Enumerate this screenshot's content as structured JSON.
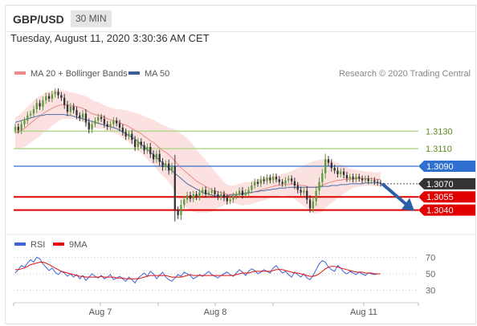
{
  "header": {
    "symbol": "GBP/USD",
    "timeframe": "30 MIN",
    "datetime": "Tuesday, August 11, 2020 3:30:36 AM CET"
  },
  "legend": {
    "bollinger": "MA 20 + Bollinger Bands",
    "ma50": "MA 50",
    "credit": "Research © 2020 Trading Central"
  },
  "colors": {
    "bull": "#5c9a3a",
    "bear": "#333333",
    "band_fill": "#fcdcdc",
    "ma20": "#e88a8a",
    "ma50": "#4a6fa8",
    "level_green": "#b5d68d",
    "level_red": "#e00000",
    "level_blue": "#2f6fd0",
    "current": "#333333",
    "arrow": "#2b5fa6",
    "rsi": "#3f63d6",
    "ma9": "#e01010"
  },
  "chart_data": [
    {
      "type": "candlestick",
      "x_labels": [
        "Aug 7",
        "Aug 8",
        "Aug 11"
      ],
      "ylim": [
        1.3014,
        1.3188
      ],
      "levels": [
        {
          "label": "1.3130",
          "value": 1.313,
          "style": "resistance-green"
        },
        {
          "label": "1.3110",
          "value": 1.311,
          "style": "resistance-green"
        },
        {
          "label": "1.3090",
          "value": 1.309,
          "style": "pivot-blue"
        },
        {
          "label": "1.3070",
          "value": 1.307,
          "style": "current-price"
        },
        {
          "label": "1.3055",
          "value": 1.3055,
          "style": "support-red"
        },
        {
          "label": "1.3040",
          "value": 1.304,
          "style": "support-red"
        }
      ],
      "close": [
        1.3135,
        1.3131,
        1.3138,
        1.3142,
        1.3148,
        1.315,
        1.3155,
        1.3162,
        1.3158,
        1.3165,
        1.317,
        1.3167,
        1.3172,
        1.3175,
        1.3171,
        1.3168,
        1.316,
        1.3152,
        1.3158,
        1.3154,
        1.3148,
        1.3145,
        1.315,
        1.314,
        1.3132,
        1.3138,
        1.3142,
        1.3146,
        1.3144,
        1.3138,
        1.3135,
        1.3138,
        1.3142,
        1.3139,
        1.3134,
        1.3129,
        1.3124,
        1.3127,
        1.312,
        1.3112,
        1.3118,
        1.3114,
        1.3108,
        1.3112,
        1.3104,
        1.3098,
        1.3104,
        1.3095,
        1.3089,
        1.3093,
        1.3085,
        1.309,
        1.304,
        1.3034,
        1.3046,
        1.3052,
        1.3057,
        1.3053,
        1.3058,
        1.3055,
        1.306,
        1.3063,
        1.3058,
        1.306,
        1.3062,
        1.3058,
        1.3055,
        1.3058,
        1.3054,
        1.305,
        1.3052,
        1.3056,
        1.3058,
        1.3062,
        1.3057,
        1.306,
        1.3063,
        1.3068,
        1.3072,
        1.307,
        1.3075,
        1.3073,
        1.3077,
        1.3074,
        1.3078,
        1.3075,
        1.3072,
        1.307,
        1.3074,
        1.3076,
        1.3073,
        1.3068,
        1.3063,
        1.306,
        1.3062,
        1.3052,
        1.3042,
        1.305,
        1.3062,
        1.3072,
        1.3082,
        1.3098,
        1.3094,
        1.3088,
        1.3085,
        1.3081,
        1.3084,
        1.308,
        1.3076,
        1.3078,
        1.3075,
        1.3078,
        1.3076,
        1.3074,
        1.3076,
        1.3073,
        1.3074,
        1.3072,
        1.3071,
        1.307
      ],
      "ma20": [
        1.3128,
        1.3129,
        1.3131,
        1.3133,
        1.3136,
        1.3139,
        1.3142,
        1.3145,
        1.3147,
        1.315,
        1.3152,
        1.3154,
        1.3156,
        1.3158,
        1.3159,
        1.316,
        1.316,
        1.316,
        1.3159,
        1.3159,
        1.3158,
        1.3157,
        1.3156,
        1.3154,
        1.3152,
        1.315,
        1.3149,
        1.3148,
        1.3147,
        1.3146,
        1.3144,
        1.3143,
        1.3142,
        1.3141,
        1.314,
        1.3138,
        1.3137,
        1.3135,
        1.3133,
        1.3131,
        1.3129,
        1.3127,
        1.3124,
        1.3122,
        1.3119,
        1.3117,
        1.3114,
        1.3111,
        1.3108,
        1.3106,
        1.3103,
        1.31,
        1.3096,
        1.3092,
        1.3088,
        1.3085,
        1.3082,
        1.3079,
        1.3076,
        1.3073,
        1.3071,
        1.3069,
        1.3067,
        1.3065,
        1.3063,
        1.3062,
        1.3061,
        1.306,
        1.3059,
        1.3058,
        1.3058,
        1.3058,
        1.3058,
        1.3058,
        1.3058,
        1.3059,
        1.3059,
        1.306,
        1.3061,
        1.3062,
        1.3063,
        1.3064,
        1.3065,
        1.3066,
        1.3067,
        1.3068,
        1.3068,
        1.3069,
        1.3069,
        1.3069,
        1.307,
        1.3069,
        1.3069,
        1.3068,
        1.3068,
        1.3067,
        1.3066,
        1.3066,
        1.3066,
        1.3067,
        1.3068,
        1.307,
        1.3071,
        1.3072,
        1.3073,
        1.3074,
        1.3074,
        1.3075,
        1.3075,
        1.3075,
        1.3076,
        1.3076,
        1.3076,
        1.3076,
        1.3076,
        1.3076,
        1.3076,
        1.3075,
        1.3075,
        1.3075
      ],
      "band_halfwidth": [
        0.0018,
        0.0019,
        0.002,
        0.0021,
        0.0022,
        0.0022,
        0.0023,
        0.0023,
        0.0023,
        0.0022,
        0.0022,
        0.0021,
        0.002,
        0.0019,
        0.0018,
        0.0017,
        0.0016,
        0.0016,
        0.0015,
        0.0015,
        0.0015,
        0.0015,
        0.0015,
        0.0016,
        0.0016,
        0.0016,
        0.0015,
        0.0015,
        0.0014,
        0.0014,
        0.0014,
        0.0014,
        0.0014,
        0.0014,
        0.0015,
        0.0016,
        0.0017,
        0.0018,
        0.0019,
        0.002,
        0.0021,
        0.0022,
        0.0023,
        0.0024,
        0.0025,
        0.0026,
        0.0027,
        0.0028,
        0.0029,
        0.003,
        0.0031,
        0.0033,
        0.0036,
        0.0038,
        0.0039,
        0.004,
        0.004,
        0.0039,
        0.0038,
        0.0036,
        0.0034,
        0.0032,
        0.003,
        0.0028,
        0.0025,
        0.0022,
        0.0019,
        0.0016,
        0.0013,
        0.0011,
        0.001,
        0.001,
        0.0011,
        0.0012,
        0.0013,
        0.0013,
        0.0013,
        0.0013,
        0.0013,
        0.0013,
        0.0013,
        0.0013,
        0.0013,
        0.0012,
        0.0012,
        0.0012,
        0.0012,
        0.0012,
        0.0013,
        0.0014,
        0.0015,
        0.0017,
        0.0019,
        0.0021,
        0.0023,
        0.0026,
        0.0028,
        0.003,
        0.003,
        0.003,
        0.003,
        0.0028,
        0.0026,
        0.0024,
        0.0022,
        0.002,
        0.0018,
        0.0016,
        0.0014,
        0.0012,
        0.0011,
        0.001,
        0.0009,
        0.0009,
        0.0008,
        0.0008,
        0.0008,
        0.0008,
        0.0008,
        0.0008
      ],
      "ma50": [
        1.314,
        1.3141,
        1.3142,
        1.3143,
        1.3144,
        1.3145,
        1.3146,
        1.3147,
        1.3148,
        1.3148,
        1.3149,
        1.3149,
        1.3149,
        1.3149,
        1.3149,
        1.3149,
        1.3149,
        1.3148,
        1.3148,
        1.3147,
        1.3146,
        1.3145,
        1.3144,
        1.3143,
        1.3142,
        1.3141,
        1.314,
        1.3139,
        1.3138,
        1.3137,
        1.3136,
        1.3135,
        1.3134,
        1.3133,
        1.3131,
        1.3129,
        1.3127,
        1.3125,
        1.3123,
        1.3121,
        1.3118,
        1.3115,
        1.3112,
        1.3109,
        1.3106,
        1.3103,
        1.31,
        1.3097,
        1.3094,
        1.3091,
        1.3088,
        1.3085,
        1.3082,
        1.3079,
        1.3076,
        1.3073,
        1.307,
        1.3068,
        1.3066,
        1.3064,
        1.3062,
        1.306,
        1.3059,
        1.3058,
        1.3057,
        1.3056,
        1.3056,
        1.3056,
        1.3056,
        1.3056,
        1.3057,
        1.3057,
        1.3058,
        1.3058,
        1.3059,
        1.3059,
        1.306,
        1.306,
        1.3061,
        1.3061,
        1.3062,
        1.3062,
        1.3063,
        1.3063,
        1.3064,
        1.3064,
        1.3065,
        1.3065,
        1.3065,
        1.3066,
        1.3066,
        1.3066,
        1.3066,
        1.3066,
        1.3066,
        1.3066,
        1.3066,
        1.3066,
        1.3066,
        1.3066,
        1.3067,
        1.3067,
        1.3067,
        1.3068,
        1.3068,
        1.3068,
        1.3069,
        1.3069,
        1.3069,
        1.307,
        1.307,
        1.307,
        1.307,
        1.307,
        1.3071,
        1.3071,
        1.3071,
        1.3071,
        1.3071,
        1.3071
      ],
      "forecast_arrow": {
        "from": 1.307,
        "to": 1.304
      }
    },
    {
      "type": "line",
      "legend": [
        "RSI",
        "9MA"
      ],
      "y_ticks": [
        "70",
        "50",
        "30"
      ],
      "ylim": [
        20,
        80
      ],
      "series": [
        {
          "name": "RSI",
          "values": [
            51,
            55,
            60,
            58,
            63,
            67,
            64,
            70,
            68,
            62,
            58,
            54,
            57,
            52,
            49,
            53,
            51,
            47,
            50,
            46,
            49,
            44,
            48,
            42,
            46,
            50,
            47,
            45,
            48,
            44,
            46,
            49,
            43,
            45,
            47,
            44,
            41,
            46,
            43,
            39,
            45,
            48,
            51,
            47,
            53,
            50,
            44,
            48,
            52,
            46,
            43,
            41,
            45,
            49,
            47,
            52,
            50,
            48,
            44,
            46,
            49,
            47,
            50,
            53,
            49,
            47,
            45,
            48,
            50,
            52,
            49,
            47,
            51,
            55,
            52,
            48,
            53,
            56,
            54,
            50,
            52,
            55,
            53,
            51,
            57,
            60,
            55,
            51,
            53,
            49,
            46,
            52,
            49,
            46,
            50,
            45,
            43,
            48,
            55,
            62,
            66,
            64,
            58,
            55,
            53,
            60,
            57,
            52,
            50,
            53,
            51,
            49,
            52,
            50,
            48,
            51,
            50,
            49,
            50,
            50
          ]
        },
        {
          "name": "9MA",
          "values": [
            55,
            55,
            56,
            57,
            59,
            61,
            62,
            63,
            64,
            64,
            63,
            61,
            59,
            57,
            55,
            53,
            52,
            51,
            50,
            49,
            48,
            47,
            47,
            46,
            46,
            46,
            46,
            46,
            47,
            46,
            46,
            46,
            46,
            45,
            45,
            45,
            44,
            44,
            44,
            44,
            44,
            45,
            46,
            47,
            48,
            48,
            48,
            48,
            48,
            48,
            47,
            46,
            46,
            46,
            46,
            47,
            48,
            49,
            48,
            48,
            48,
            48,
            48,
            48,
            48,
            48,
            48,
            48,
            48,
            48,
            48,
            48,
            49,
            50,
            51,
            51,
            51,
            52,
            53,
            53,
            53,
            53,
            53,
            53,
            54,
            55,
            55,
            55,
            54,
            53,
            52,
            51,
            51,
            50,
            49,
            48,
            47,
            47,
            48,
            50,
            53,
            56,
            58,
            59,
            59,
            58,
            57,
            56,
            55,
            54,
            53,
            52,
            52,
            52,
            51,
            51,
            51,
            50,
            50,
            50
          ]
        }
      ]
    }
  ]
}
